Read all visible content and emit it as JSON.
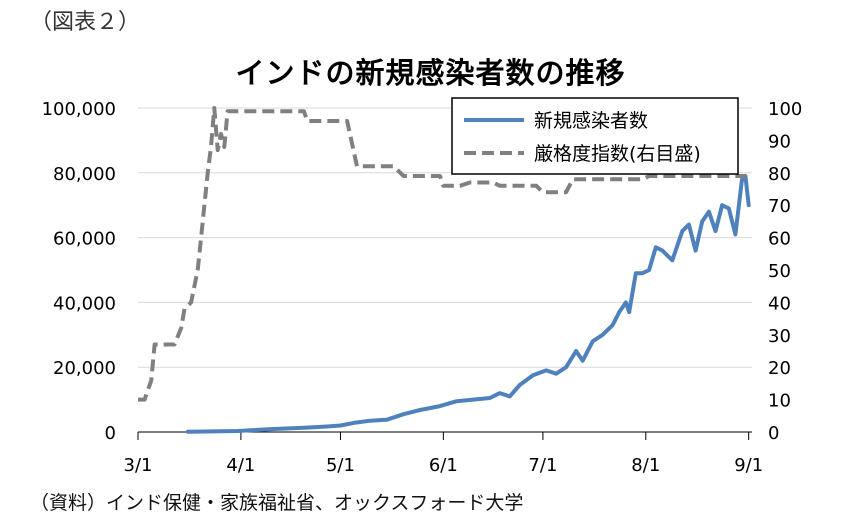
{
  "figure_label": "（図表２）",
  "source_note": "（資料）インド保健・家族福祉省、オックスフォード大学",
  "chart_data": {
    "type": "line",
    "title": "インドの新規感染者数の推移",
    "x_tick_labels": [
      "3/1",
      "4/1",
      "5/1",
      "6/1",
      "7/1",
      "8/1",
      "9/1"
    ],
    "x_tick_dates": [
      "2020-03-01",
      "2020-04-01",
      "2020-05-01",
      "2020-06-01",
      "2020-07-01",
      "2020-08-01",
      "2020-09-01"
    ],
    "xlim": [
      "2020-03-01",
      "2020-09-02"
    ],
    "y_left": {
      "ylim": [
        0,
        100000
      ],
      "ticks": [
        0,
        20000,
        40000,
        60000,
        80000,
        100000
      ],
      "tick_labels": [
        "0",
        "20,000",
        "40,000",
        "60,000",
        "80,000",
        "100,000"
      ]
    },
    "y_right": {
      "ylim": [
        0,
        100
      ],
      "ticks": [
        0,
        10,
        20,
        30,
        40,
        50,
        60,
        70,
        80,
        90,
        100
      ],
      "tick_labels": [
        "0",
        "10",
        "20",
        "30",
        "40",
        "50",
        "60",
        "70",
        "80",
        "90",
        "100"
      ]
    },
    "legend_position": "top-right",
    "grid": true,
    "series": [
      {
        "name": "新規感染者数",
        "axis": "left",
        "color": "#4f81bd",
        "style": "solid",
        "points": [
          [
            "2020-03-16",
            100
          ],
          [
            "2020-03-31",
            300
          ],
          [
            "2020-04-10",
            900
          ],
          [
            "2020-04-20",
            1300
          ],
          [
            "2020-04-27",
            1700
          ],
          [
            "2020-05-01",
            2000
          ],
          [
            "2020-05-05",
            2800
          ],
          [
            "2020-05-10",
            3500
          ],
          [
            "2020-05-15",
            3800
          ],
          [
            "2020-05-20",
            5500
          ],
          [
            "2020-05-25",
            6800
          ],
          [
            "2020-05-31",
            8000
          ],
          [
            "2020-06-05",
            9500
          ],
          [
            "2020-06-10",
            10000
          ],
          [
            "2020-06-15",
            10500
          ],
          [
            "2020-06-18",
            12000
          ],
          [
            "2020-06-21",
            11000
          ],
          [
            "2020-06-24",
            14500
          ],
          [
            "2020-06-28",
            17500
          ],
          [
            "2020-07-02",
            19000
          ],
          [
            "2020-07-05",
            18000
          ],
          [
            "2020-07-08",
            20000
          ],
          [
            "2020-07-11",
            25000
          ],
          [
            "2020-07-13",
            22000
          ],
          [
            "2020-07-16",
            28000
          ],
          [
            "2020-07-19",
            30000
          ],
          [
            "2020-07-22",
            33000
          ],
          [
            "2020-07-24",
            37000
          ],
          [
            "2020-07-26",
            40000
          ],
          [
            "2020-07-27",
            37000
          ],
          [
            "2020-07-29",
            49000
          ],
          [
            "2020-07-31",
            49000
          ],
          [
            "2020-08-02",
            50000
          ],
          [
            "2020-08-04",
            57000
          ],
          [
            "2020-08-06",
            56000
          ],
          [
            "2020-08-09",
            53000
          ],
          [
            "2020-08-12",
            62000
          ],
          [
            "2020-08-14",
            64000
          ],
          [
            "2020-08-16",
            56000
          ],
          [
            "2020-08-18",
            65000
          ],
          [
            "2020-08-20",
            68000
          ],
          [
            "2020-08-22",
            62000
          ],
          [
            "2020-08-24",
            70000
          ],
          [
            "2020-08-26",
            69000
          ],
          [
            "2020-08-28",
            61000
          ],
          [
            "2020-08-30",
            78000
          ],
          [
            "2020-08-31",
            79000
          ],
          [
            "2020-09-01",
            70000
          ]
        ]
      },
      {
        "name": "厳格度指数(右目盛)",
        "axis": "right",
        "color": "#808080",
        "style": "dashed",
        "points": [
          [
            "2020-03-01",
            10
          ],
          [
            "2020-03-03",
            10
          ],
          [
            "2020-03-05",
            16
          ],
          [
            "2020-03-06",
            27
          ],
          [
            "2020-03-12",
            27
          ],
          [
            "2020-03-14",
            32
          ],
          [
            "2020-03-15",
            38
          ],
          [
            "2020-03-17",
            40
          ],
          [
            "2020-03-19",
            50
          ],
          [
            "2020-03-20",
            60
          ],
          [
            "2020-03-21",
            70
          ],
          [
            "2020-03-22",
            80
          ],
          [
            "2020-03-23",
            88
          ],
          [
            "2020-03-24",
            100
          ],
          [
            "2020-03-25",
            87
          ],
          [
            "2020-03-26",
            92
          ],
          [
            "2020-03-27",
            88
          ],
          [
            "2020-03-28",
            99
          ],
          [
            "2020-04-20",
            99
          ],
          [
            "2020-04-21",
            96
          ],
          [
            "2020-05-03",
            96
          ],
          [
            "2020-05-06",
            82
          ],
          [
            "2020-05-17",
            82
          ],
          [
            "2020-05-20",
            79
          ],
          [
            "2020-05-31",
            79
          ],
          [
            "2020-06-01",
            76
          ],
          [
            "2020-06-06",
            76
          ],
          [
            "2020-06-09",
            77
          ],
          [
            "2020-06-16",
            77
          ],
          [
            "2020-06-18",
            76
          ],
          [
            "2020-06-29",
            76
          ],
          [
            "2020-07-01",
            74
          ],
          [
            "2020-07-08",
            74
          ],
          [
            "2020-07-10",
            78
          ],
          [
            "2020-07-31",
            78
          ],
          [
            "2020-08-02",
            79
          ],
          [
            "2020-08-31",
            79
          ]
        ]
      }
    ]
  }
}
